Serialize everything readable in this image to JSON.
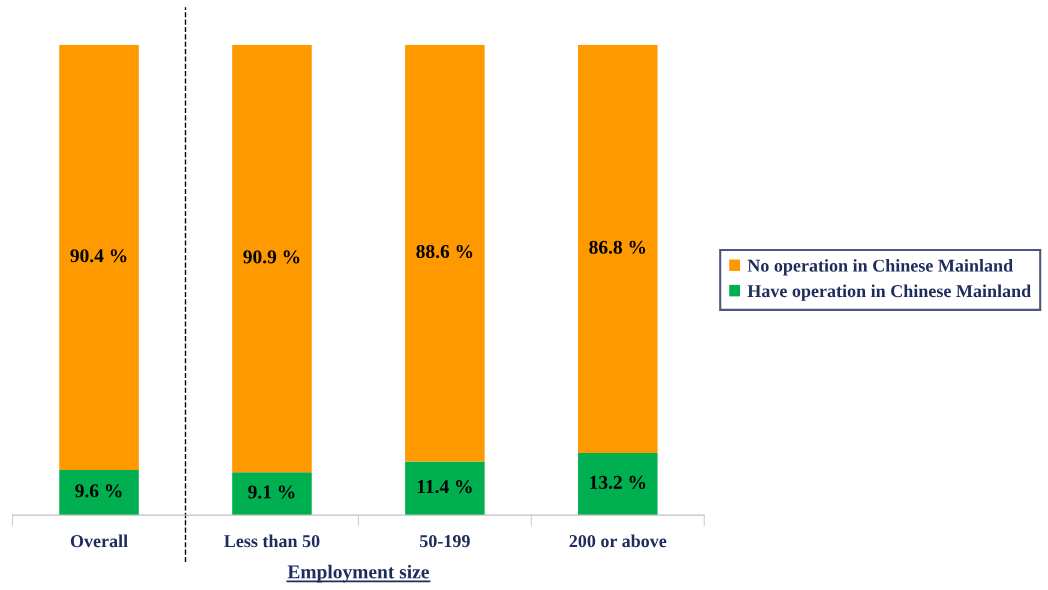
{
  "chart_data": {
    "type": "bar",
    "stacked": true,
    "xlabel": "Employment size",
    "categories": [
      "Overall",
      "Less than 50",
      "50-199",
      "200 or above"
    ],
    "series": [
      {
        "name": "Have operation in Chinese Mainland",
        "color": "#00b050",
        "values": [
          9.6,
          9.1,
          11.4,
          13.2
        ],
        "value_labels": [
          "9.6 %",
          "9.1 %",
          "11.4 %",
          "13.2 %"
        ]
      },
      {
        "name": "No operation in Chinese Mainland",
        "color": "#ff9900",
        "values": [
          90.4,
          90.9,
          88.6,
          86.8
        ],
        "value_labels": [
          "90.4 %",
          "90.9 %",
          "88.6 %",
          "86.8 %"
        ]
      }
    ],
    "legend": "right",
    "grid": false
  }
}
